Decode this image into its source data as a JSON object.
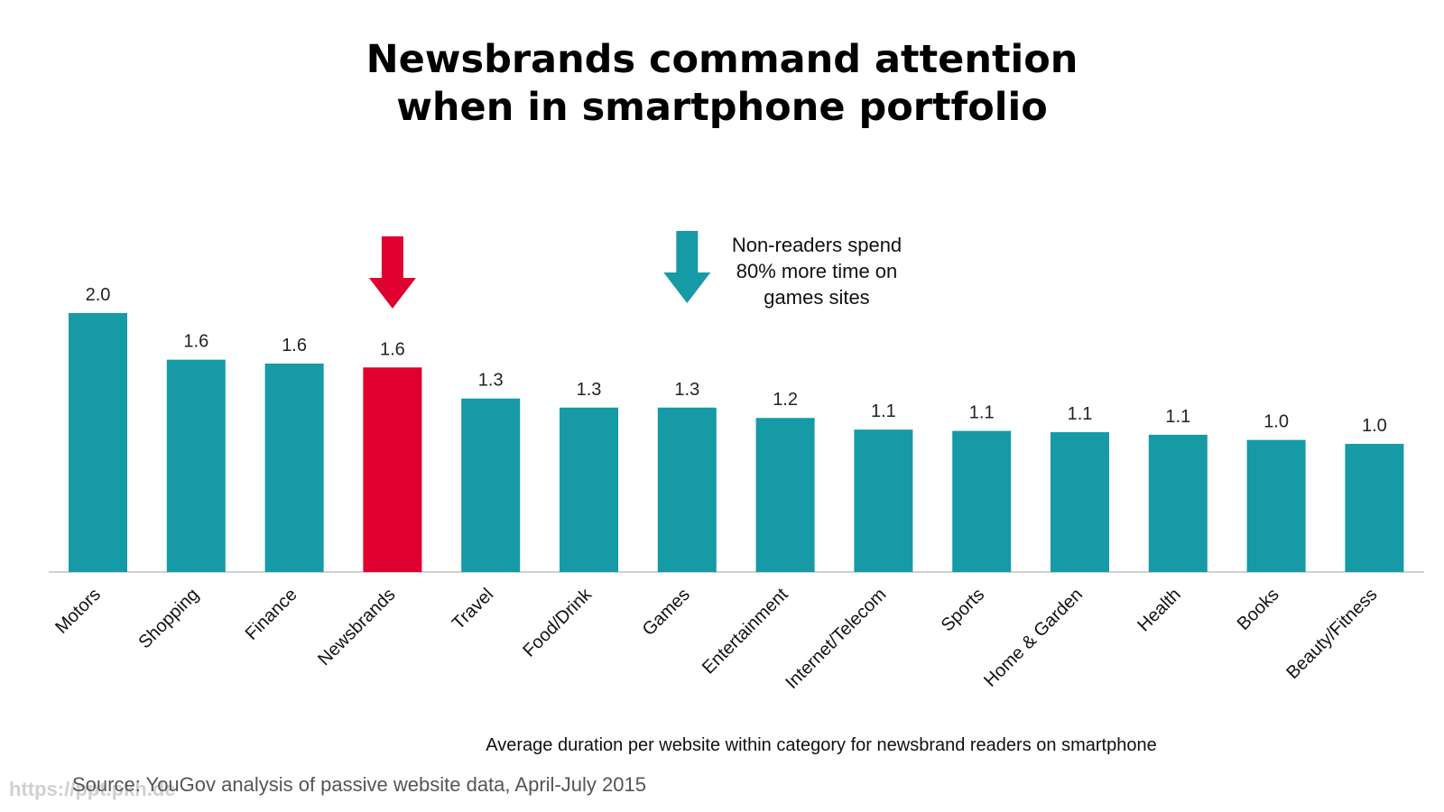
{
  "title": {
    "line1": "Newsbrands command attention",
    "line2": "when in smartphone portfolio"
  },
  "annotation": {
    "lines": [
      "Non-readers spend",
      "80% more time on",
      "games sites"
    ]
  },
  "subtitle": "Average duration per website within category for newsbrand readers on smartphone",
  "source": "Source: YouGov analysis of passive website data, April-July 2015",
  "watermark": "https://ppt.pkh.de",
  "colors": {
    "bar": "#169aa6",
    "highlight": "#e0002f",
    "axis": "#d0d0d0"
  },
  "chart_data": {
    "type": "bar",
    "categories": [
      "Motors",
      "Shopping",
      "Finance",
      "Newsbrands",
      "Travel",
      "Food/Drink",
      "Games",
      "Entertainment",
      "Internet/Telecom",
      "Sports",
      "Home & Garden",
      "Health",
      "Books",
      "Beauty/Fitness"
    ],
    "values": [
      2.0,
      1.64,
      1.61,
      1.58,
      1.34,
      1.27,
      1.27,
      1.19,
      1.1,
      1.09,
      1.08,
      1.06,
      1.02,
      0.99
    ],
    "labels": [
      "2.0",
      "1.6",
      "1.6",
      "1.6",
      "1.3",
      "1.3",
      "1.3",
      "1.2",
      "1.1",
      "1.1",
      "1.1",
      "1.1",
      "1.0",
      "1.0"
    ],
    "highlight_category": "Newsbrands",
    "arrow_categories": [
      "Newsbrands",
      "Games"
    ],
    "ylim": [
      0,
      2.0
    ],
    "grid": false,
    "legend": "none"
  }
}
